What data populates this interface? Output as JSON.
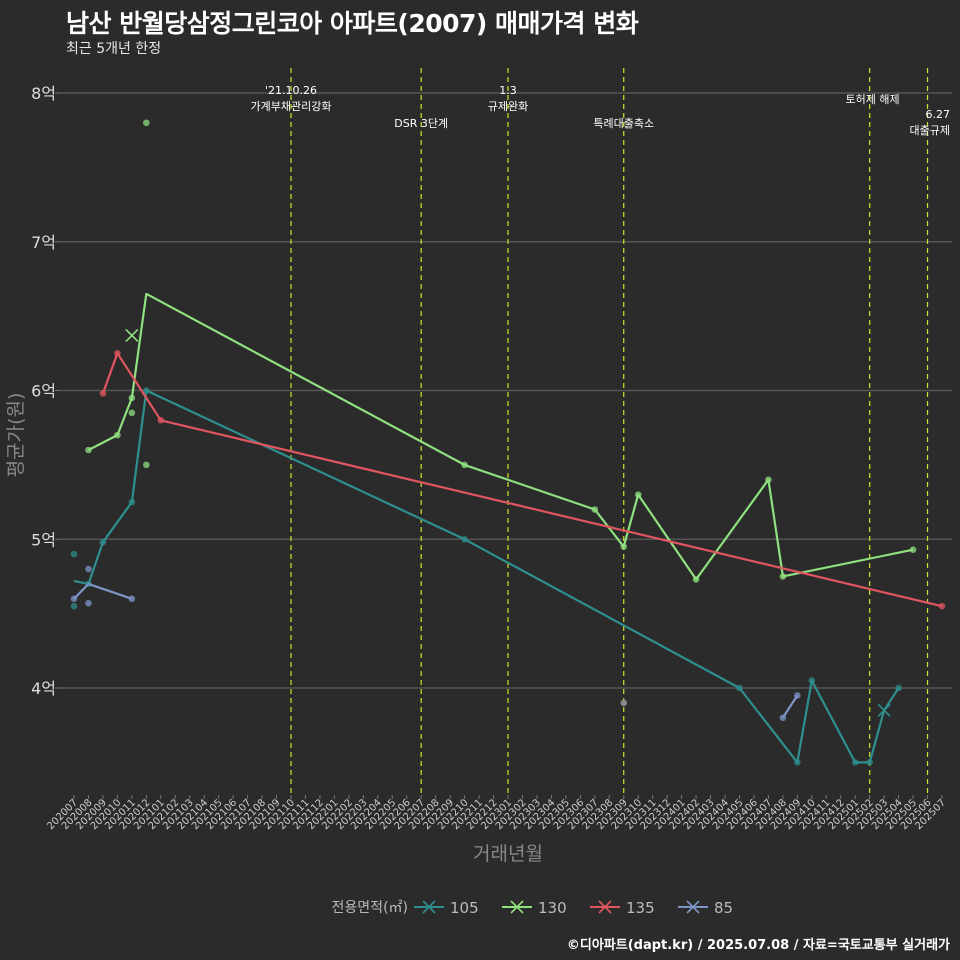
{
  "title": "남산 반월당삼정그린코아 아파트(2007) 매매가격 변화",
  "subtitle": "최근 5개년 한정",
  "caption": "©디아파트(dapt.kr) / 2025.07.08 / 자료=국토교통부 실거래가",
  "chart_data": {
    "type": "line",
    "xlabel": "거래년월",
    "ylabel": "평균가(원)",
    "x_categories": [
      "202007",
      "202008",
      "202009",
      "202010",
      "202011",
      "202012",
      "202101",
      "202102",
      "202103",
      "202104",
      "202105",
      "202106",
      "202107",
      "202108",
      "202109",
      "202110",
      "202111",
      "202112",
      "202201",
      "202202",
      "202203",
      "202204",
      "202205",
      "202206",
      "202207",
      "202208",
      "202209",
      "202210",
      "202211",
      "202212",
      "202301",
      "202302",
      "202303",
      "202304",
      "202305",
      "202306",
      "202307",
      "202308",
      "202309",
      "202310",
      "202311",
      "202312",
      "202401",
      "202402",
      "202403",
      "202404",
      "202405",
      "202406",
      "202407",
      "202408",
      "202409",
      "202410",
      "202411",
      "202412",
      "202501",
      "202502",
      "202503",
      "202504",
      "202505",
      "202506",
      "202507"
    ],
    "y_ticks": [
      {
        "value": 4,
        "label": "4억"
      },
      {
        "value": 5,
        "label": "5억"
      },
      {
        "value": 6,
        "label": "6억"
      },
      {
        "value": 7,
        "label": "7억"
      },
      {
        "value": 8,
        "label": "8억"
      }
    ],
    "ylim": [
      3.3,
      8.15
    ],
    "y_unit": "억",
    "legend_title": "전용면적(㎡)",
    "legend_position": "bottom",
    "series": [
      {
        "name": "105",
        "color": "#2f8f8f",
        "line": [
          [
            "202007",
            4.72
          ],
          [
            "202008",
            4.7
          ],
          [
            "202009",
            4.98
          ],
          [
            "202011",
            5.25
          ],
          [
            "202012",
            6.0
          ],
          [
            "202210",
            5.0
          ],
          [
            "202405",
            4.0
          ],
          [
            "202409",
            3.5
          ],
          [
            "202410",
            4.05
          ],
          [
            "202501",
            3.5
          ],
          [
            "202502",
            3.5
          ],
          [
            "202503",
            3.85
          ],
          [
            "202504",
            4.0
          ]
        ],
        "points": [
          [
            "202007",
            4.9
          ],
          [
            "202007",
            4.55
          ],
          [
            "202008",
            4.7
          ],
          [
            "202009",
            4.98
          ],
          [
            "202011",
            5.25
          ],
          [
            "202012",
            6.0
          ],
          [
            "202210",
            5.0
          ],
          [
            "202405",
            4.0
          ],
          [
            "202409",
            3.5
          ],
          [
            "202410",
            4.05
          ],
          [
            "202501",
            3.5
          ],
          [
            "202502",
            3.5
          ],
          [
            "202504",
            4.0
          ]
        ],
        "x_marks": [
          [
            "202503",
            3.85
          ]
        ]
      },
      {
        "name": "130",
        "color": "#8fe07f",
        "line": [
          [
            "202008",
            5.6
          ],
          [
            "202010",
            5.7
          ],
          [
            "202011",
            5.95
          ],
          [
            "202012",
            6.65
          ],
          [
            "202210",
            5.5
          ],
          [
            "202307",
            5.2
          ],
          [
            "202309",
            4.95
          ],
          [
            "202310",
            5.3
          ],
          [
            "202402",
            4.73
          ],
          [
            "202407",
            5.4
          ],
          [
            "202408",
            4.75
          ],
          [
            "202505",
            4.93
          ]
        ],
        "points": [
          [
            "202008",
            5.6
          ],
          [
            "202010",
            5.7
          ],
          [
            "202011",
            5.95
          ],
          [
            "202011",
            5.85
          ],
          [
            "202012",
            5.5
          ],
          [
            "202012",
            7.8
          ],
          [
            "202210",
            5.5
          ],
          [
            "202307",
            5.2
          ],
          [
            "202309",
            4.95
          ],
          [
            "202310",
            5.3
          ],
          [
            "202402",
            4.73
          ],
          [
            "202407",
            5.4
          ],
          [
            "202408",
            4.75
          ],
          [
            "202505",
            4.93
          ]
        ],
        "x_marks": [
          [
            "202011",
            6.37
          ]
        ]
      },
      {
        "name": "135",
        "color": "#e0555f",
        "line": [
          [
            "202009",
            5.98
          ],
          [
            "202010",
            6.25
          ],
          [
            "202101",
            5.8
          ],
          [
            "202507",
            4.55
          ]
        ],
        "points": [
          [
            "202009",
            5.98
          ],
          [
            "202010",
            6.25
          ],
          [
            "202101",
            5.8
          ],
          [
            "202507",
            4.55
          ]
        ],
        "x_marks": []
      },
      {
        "name": "85",
        "color": "#7f95c8",
        "line": [
          [
            "202007",
            4.6
          ],
          [
            "202008",
            4.7
          ],
          [
            "202011",
            4.6
          ]
        ],
        "points": [
          [
            "202007",
            4.6
          ],
          [
            "202008",
            4.57
          ],
          [
            "202008",
            4.8
          ],
          [
            "202011",
            4.6
          ],
          [
            "202408",
            3.8
          ],
          [
            "202409",
            3.95
          ]
        ],
        "x_marks": [],
        "segments": [
          [
            [
              "202408",
              3.8
            ],
            [
              "202409",
              3.95
            ]
          ]
        ]
      }
    ],
    "extra_points": [
      {
        "x": "202309",
        "y": 3.9,
        "color": "#888888"
      }
    ],
    "vlines": [
      {
        "x": "202110",
        "labels": [
          "'21.10.26",
          "가계부채관리강화"
        ],
        "label_row": "top"
      },
      {
        "x": "202207",
        "labels": [
          "DSR 3단계"
        ],
        "label_row": "low"
      },
      {
        "x": "202301",
        "labels": [
          "1.3",
          "규제완화"
        ],
        "label_row": "top"
      },
      {
        "x": "202309",
        "labels": [
          "특례대출축소"
        ],
        "label_row": "low"
      },
      {
        "x": "202502",
        "labels": [
          "토허제 해제"
        ],
        "label_row": "mid"
      },
      {
        "x": "202506",
        "labels": [
          "6.27",
          "대출규제"
        ],
        "label_row": "right"
      }
    ],
    "grid": true
  }
}
